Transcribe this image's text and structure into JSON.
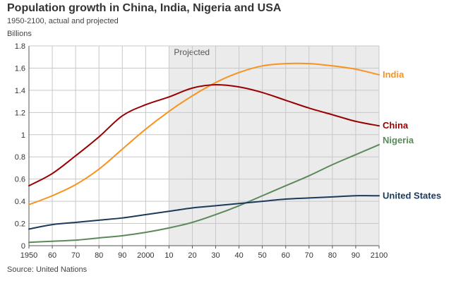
{
  "header": {
    "title": "Population growth in China, India, Nigeria and USA",
    "subtitle": "1950-2100, actual and projected",
    "ylabel": "Billions",
    "source": "Source: United Nations"
  },
  "chart_data": {
    "type": "line",
    "title": "Population growth in China, India, Nigeria and USA",
    "subtitle": "1950-2100, actual and projected",
    "xlabel": "",
    "ylabel": "Billions",
    "xlim": [
      1950,
      2100
    ],
    "ylim": [
      0,
      1.8
    ],
    "grid": true,
    "shaded_region": {
      "label": "Projected",
      "from": 2010,
      "to": 2100
    },
    "xticks": [
      1950,
      1960,
      1970,
      1980,
      1990,
      2000,
      2010,
      2020,
      2030,
      2040,
      2050,
      2060,
      2070,
      2080,
      2090,
      2100
    ],
    "xtick_labels": [
      "1950",
      "60",
      "70",
      "80",
      "90",
      "2000",
      "10",
      "20",
      "30",
      "40",
      "50",
      "60",
      "70",
      "80",
      "90",
      "2100"
    ],
    "yticks": [
      0,
      0.2,
      0.4,
      0.6,
      0.8,
      1.0,
      1.2,
      1.4,
      1.6,
      1.8
    ],
    "ytick_labels": [
      "0",
      "0.2",
      "0.4",
      "0.6",
      "0.8",
      "1",
      "1.2",
      "1.4",
      "1.6",
      "1.8"
    ],
    "x": [
      1950,
      1960,
      1970,
      1980,
      1990,
      2000,
      2010,
      2020,
      2030,
      2040,
      2050,
      2060,
      2070,
      2080,
      2090,
      2100
    ],
    "series": [
      {
        "name": "India",
        "color": "#f7931e",
        "values": [
          0.37,
          0.45,
          0.55,
          0.69,
          0.87,
          1.05,
          1.21,
          1.35,
          1.47,
          1.56,
          1.62,
          1.64,
          1.64,
          1.62,
          1.59,
          1.54
        ]
      },
      {
        "name": "China",
        "color": "#990000",
        "values": [
          0.54,
          0.65,
          0.81,
          0.98,
          1.17,
          1.27,
          1.34,
          1.42,
          1.45,
          1.43,
          1.38,
          1.31,
          1.24,
          1.18,
          1.12,
          1.08
        ]
      },
      {
        "name": "Nigeria",
        "color": "#5a8a5a",
        "values": [
          0.03,
          0.04,
          0.05,
          0.07,
          0.09,
          0.12,
          0.16,
          0.21,
          0.28,
          0.36,
          0.45,
          0.54,
          0.63,
          0.73,
          0.82,
          0.91
        ]
      },
      {
        "name": "United States",
        "color": "#1b3a5c",
        "values": [
          0.15,
          0.19,
          0.21,
          0.23,
          0.25,
          0.28,
          0.31,
          0.34,
          0.36,
          0.38,
          0.4,
          0.42,
          0.43,
          0.44,
          0.45,
          0.45
        ]
      }
    ]
  }
}
